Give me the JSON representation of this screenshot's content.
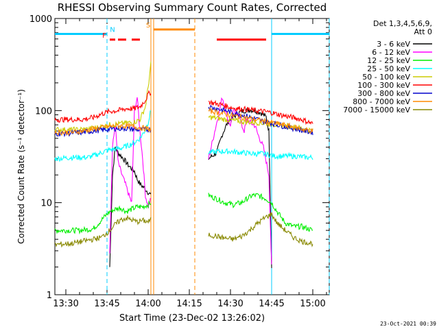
{
  "chart_data": {
    "type": "line",
    "title": "RHESSI Observing Summary Count Rates, Corrected",
    "xlabel": "Start Time (23-Dec-02 13:26:02)",
    "ylabel": "Corrected Count Rate (s⁻¹ detector⁻¹)",
    "x_unit": "minutes of day",
    "xlim": [
      806,
      906
    ],
    "ylim": [
      1,
      1000
    ],
    "y_scale": "log",
    "x_ticks": [
      {
        "x": 810,
        "label": "13:30"
      },
      {
        "x": 825,
        "label": "13:45"
      },
      {
        "x": 840,
        "label": "14:00"
      },
      {
        "x": 855,
        "label": "14:15"
      },
      {
        "x": 870,
        "label": "14:30"
      },
      {
        "x": 885,
        "label": "14:45"
      },
      {
        "x": 900,
        "label": "15:00"
      }
    ],
    "y_ticks": [
      {
        "y": 1,
        "label": "1"
      },
      {
        "y": 10,
        "label": "10"
      },
      {
        "y": 100,
        "label": "100"
      },
      {
        "y": 1000,
        "label": "1000"
      }
    ],
    "legend_title": [
      "Det 1,3,4,5,6,9,",
      "Att 0"
    ],
    "legend_position": "right",
    "grid": false,
    "series": [
      {
        "name": "3 - 6 keV",
        "color": "#000000",
        "segments": [
          [
            [
              826,
              2
            ],
            [
              827,
              20
            ],
            [
              828,
              40
            ],
            [
              829,
              35
            ],
            [
              831,
              30
            ],
            [
              833,
              25
            ],
            [
              835,
              22
            ],
            [
              836,
              18
            ],
            [
              837,
              16
            ],
            [
              838,
              15
            ],
            [
              839,
              14
            ],
            [
              840,
              13
            ],
            [
              841,
              12
            ]
          ],
          [
            [
              862,
              30
            ],
            [
              865,
              35
            ],
            [
              867,
              55
            ],
            [
              869,
              75
            ],
            [
              871,
              85
            ],
            [
              873,
              95
            ],
            [
              875,
              100
            ],
            [
              877,
              102
            ],
            [
              879,
              100
            ],
            [
              881,
              95
            ],
            [
              883,
              85
            ],
            [
              884,
              60
            ],
            [
              885,
              2
            ]
          ]
        ]
      },
      {
        "name": "6 - 12 keV",
        "color": "#ff00ff",
        "segments": [
          [
            [
              826,
              3
            ],
            [
              827,
              40
            ],
            [
              828,
              70
            ],
            [
              829,
              28
            ],
            [
              830,
              22
            ],
            [
              832,
              15
            ],
            [
              833,
              12
            ],
            [
              834,
              10
            ],
            [
              835,
              100
            ],
            [
              836,
              140
            ],
            [
              837,
              60
            ],
            [
              838,
              30
            ],
            [
              839,
              12
            ],
            [
              840,
              9
            ],
            [
              841,
              11
            ]
          ],
          [
            [
              862,
              30
            ],
            [
              864,
              55
            ],
            [
              866,
              100
            ],
            [
              867,
              140
            ],
            [
              868,
              110
            ],
            [
              869,
              80
            ],
            [
              870,
              70
            ],
            [
              871,
              100
            ],
            [
              872,
              90
            ],
            [
              873,
              95
            ],
            [
              874,
              70
            ],
            [
              875,
              60
            ],
            [
              876,
              80
            ],
            [
              877,
              75
            ],
            [
              879,
              68
            ],
            [
              880,
              55
            ],
            [
              882,
              40
            ],
            [
              884,
              20
            ],
            [
              885,
              2
            ]
          ]
        ]
      },
      {
        "name": "12 - 25 keV",
        "color": "#00ee00",
        "segments": [
          [
            [
              806,
              5
            ],
            [
              815,
              5
            ],
            [
              820,
              5.2
            ],
            [
              822,
              6
            ],
            [
              824,
              7
            ],
            [
              826,
              8
            ],
            [
              828,
              8.5
            ],
            [
              830,
              8.8
            ],
            [
              832,
              8
            ],
            [
              834,
              8.5
            ],
            [
              836,
              9
            ],
            [
              838,
              9
            ],
            [
              840,
              9.5
            ],
            [
              841,
              10
            ]
          ],
          [
            [
              862,
              12
            ],
            [
              865,
              11
            ],
            [
              868,
              10
            ],
            [
              871,
              9.5
            ],
            [
              874,
              10
            ],
            [
              876,
              11
            ],
            [
              878,
              12
            ],
            [
              880,
              12
            ],
            [
              883,
              11
            ],
            [
              885,
              10
            ],
            [
              887,
              8
            ],
            [
              890,
              6
            ],
            [
              893,
              5.5
            ],
            [
              896,
              5.5
            ],
            [
              900,
              5
            ]
          ]
        ]
      },
      {
        "name": "25 - 50 keV",
        "color": "#00ffff",
        "segments": [
          [
            [
              806,
              30
            ],
            [
              812,
              31
            ],
            [
              818,
              31
            ],
            [
              821,
              33
            ],
            [
              823,
              35
            ],
            [
              825,
              37
            ],
            [
              827,
              38
            ],
            [
              830,
              39
            ],
            [
              833,
              42
            ],
            [
              835,
              45
            ],
            [
              837,
              50
            ],
            [
              839,
              62
            ],
            [
              840,
              75
            ],
            [
              841,
              100
            ]
          ],
          [
            [
              862,
              35
            ],
            [
              866,
              36
            ],
            [
              870,
              36
            ],
            [
              874,
              35
            ],
            [
              878,
              34
            ],
            [
              882,
              34
            ],
            [
              884,
              33
            ],
            [
              886,
              32
            ],
            [
              890,
              32
            ],
            [
              894,
              32
            ],
            [
              898,
              31
            ],
            [
              900,
              31
            ]
          ]
        ]
      },
      {
        "name": "50 - 100 keV",
        "color": "#cccc00",
        "segments": [
          [
            [
              806,
              62
            ],
            [
              814,
              62
            ],
            [
              818,
              63
            ],
            [
              822,
              66
            ],
            [
              826,
              70
            ],
            [
              830,
              72
            ],
            [
              833,
              74
            ],
            [
              835,
              75
            ],
            [
              837,
              80
            ],
            [
              839,
              110
            ],
            [
              840,
              180
            ],
            [
              841,
              320
            ]
          ],
          [
            [
              862,
              85
            ],
            [
              865,
              83
            ],
            [
              868,
              80
            ],
            [
              871,
              78
            ],
            [
              874,
              76
            ],
            [
              877,
              75
            ],
            [
              880,
              74
            ],
            [
              884,
              72
            ],
            [
              887,
              70
            ],
            [
              890,
              68
            ],
            [
              894,
              66
            ],
            [
              898,
              62
            ],
            [
              900,
              60
            ]
          ]
        ]
      },
      {
        "name": "100 - 300 keV",
        "color": "#ff0000",
        "segments": [
          [
            [
              806,
              80
            ],
            [
              812,
              80
            ],
            [
              816,
              80
            ],
            [
              820,
              84
            ],
            [
              823,
              92
            ],
            [
              826,
              98
            ],
            [
              829,
              100
            ],
            [
              832,
              105
            ],
            [
              835,
              105
            ],
            [
              837,
              110
            ],
            [
              839,
              130
            ],
            [
              840,
              150
            ],
            [
              841,
              160
            ]
          ],
          [
            [
              862,
              125
            ],
            [
              864,
              120
            ],
            [
              867,
              115
            ],
            [
              870,
              108
            ],
            [
              873,
              105
            ],
            [
              876,
              103
            ],
            [
              879,
              100
            ],
            [
              882,
              98
            ],
            [
              885,
              95
            ],
            [
              888,
              90
            ],
            [
              892,
              85
            ],
            [
              896,
              80
            ],
            [
              900,
              72
            ]
          ]
        ]
      },
      {
        "name": "300 - 800 keV",
        "color": "#0000cc",
        "segments": [
          [
            [
              806,
              56
            ],
            [
              812,
              57
            ],
            [
              816,
              58
            ],
            [
              820,
              60
            ],
            [
              824,
              62
            ],
            [
              828,
              64
            ],
            [
              832,
              64
            ],
            [
              836,
              62
            ],
            [
              839,
              62
            ],
            [
              841,
              63
            ]
          ],
          [
            [
              862,
              110
            ],
            [
              865,
              105
            ],
            [
              868,
              100
            ],
            [
              871,
              95
            ],
            [
              874,
              90
            ],
            [
              877,
              85
            ],
            [
              880,
              80
            ],
            [
              883,
              75
            ],
            [
              886,
              72
            ],
            [
              889,
              68
            ],
            [
              893,
              64
            ],
            [
              897,
              60
            ],
            [
              900,
              58
            ]
          ]
        ]
      },
      {
        "name": "800 - 7000 keV",
        "color": "#ff8800",
        "segments": [
          [
            [
              806,
              58
            ],
            [
              812,
              58
            ],
            [
              816,
              60
            ],
            [
              820,
              63
            ],
            [
              824,
              66
            ],
            [
              828,
              68
            ],
            [
              832,
              68
            ],
            [
              836,
              66
            ],
            [
              839,
              64
            ],
            [
              841,
              62
            ]
          ],
          [
            [
              862,
              100
            ],
            [
              865,
              96
            ],
            [
              868,
              92
            ],
            [
              871,
              88
            ],
            [
              874,
              85
            ],
            [
              877,
              82
            ],
            [
              880,
              79
            ],
            [
              883,
              76
            ],
            [
              886,
              73
            ],
            [
              889,
              70
            ],
            [
              893,
              66
            ],
            [
              897,
              62
            ],
            [
              900,
              60
            ]
          ]
        ]
      },
      {
        "name": "7000 - 15000 keV",
        "color": "#888800",
        "segments": [
          [
            [
              806,
              3.5
            ],
            [
              812,
              3.6
            ],
            [
              816,
              3.8
            ],
            [
              820,
              4
            ],
            [
              823,
              4.2
            ],
            [
              826,
              5
            ],
            [
              828,
              5.8
            ],
            [
              830,
              6.5
            ],
            [
              832,
              6.8
            ],
            [
              834,
              6.5
            ],
            [
              836,
              6.2
            ],
            [
              838,
              6.4
            ],
            [
              840,
              6.2
            ],
            [
              841,
              6.5
            ]
          ],
          [
            [
              862,
              4.5
            ],
            [
              865,
              4.3
            ],
            [
              868,
              4.1
            ],
            [
              871,
              4
            ],
            [
              874,
              4.3
            ],
            [
              877,
              5
            ],
            [
              880,
              6
            ],
            [
              883,
              7
            ],
            [
              885,
              7.5
            ],
            [
              887,
              6
            ],
            [
              890,
              5
            ],
            [
              893,
              4.2
            ],
            [
              896,
              3.8
            ],
            [
              900,
              3.6
            ]
          ]
        ]
      }
    ],
    "flags": [
      {
        "label": "N",
        "color": "#00ccff",
        "y": 680,
        "spans": [
          [
            806,
            825
          ],
          [
            885,
            906
          ]
        ]
      },
      {
        "label": "F",
        "color": "#ff0000",
        "y": 590,
        "spans": [
          [
            826,
            828
          ],
          [
            829,
            832
          ],
          [
            834,
            837
          ],
          [
            865,
            883
          ]
        ]
      },
      {
        "label": "S",
        "color": "#ff8800",
        "y": 760,
        "spans": [
          [
            842,
            857
          ]
        ]
      }
    ],
    "vlines": [
      {
        "x": 825,
        "color": "#00ccff",
        "style": "dash"
      },
      {
        "x": 841,
        "color": "#ff8800",
        "style": "solid"
      },
      {
        "x": 842,
        "color": "#ff8800",
        "style": "solid"
      },
      {
        "x": 857,
        "color": "#ff8800",
        "style": "dash"
      },
      {
        "x": 885,
        "color": "#00ccff",
        "style": "solid"
      },
      {
        "x": 906,
        "color": "#00ccff",
        "style": "dash"
      }
    ],
    "footer": "23-Oct-2021 00:39"
  }
}
